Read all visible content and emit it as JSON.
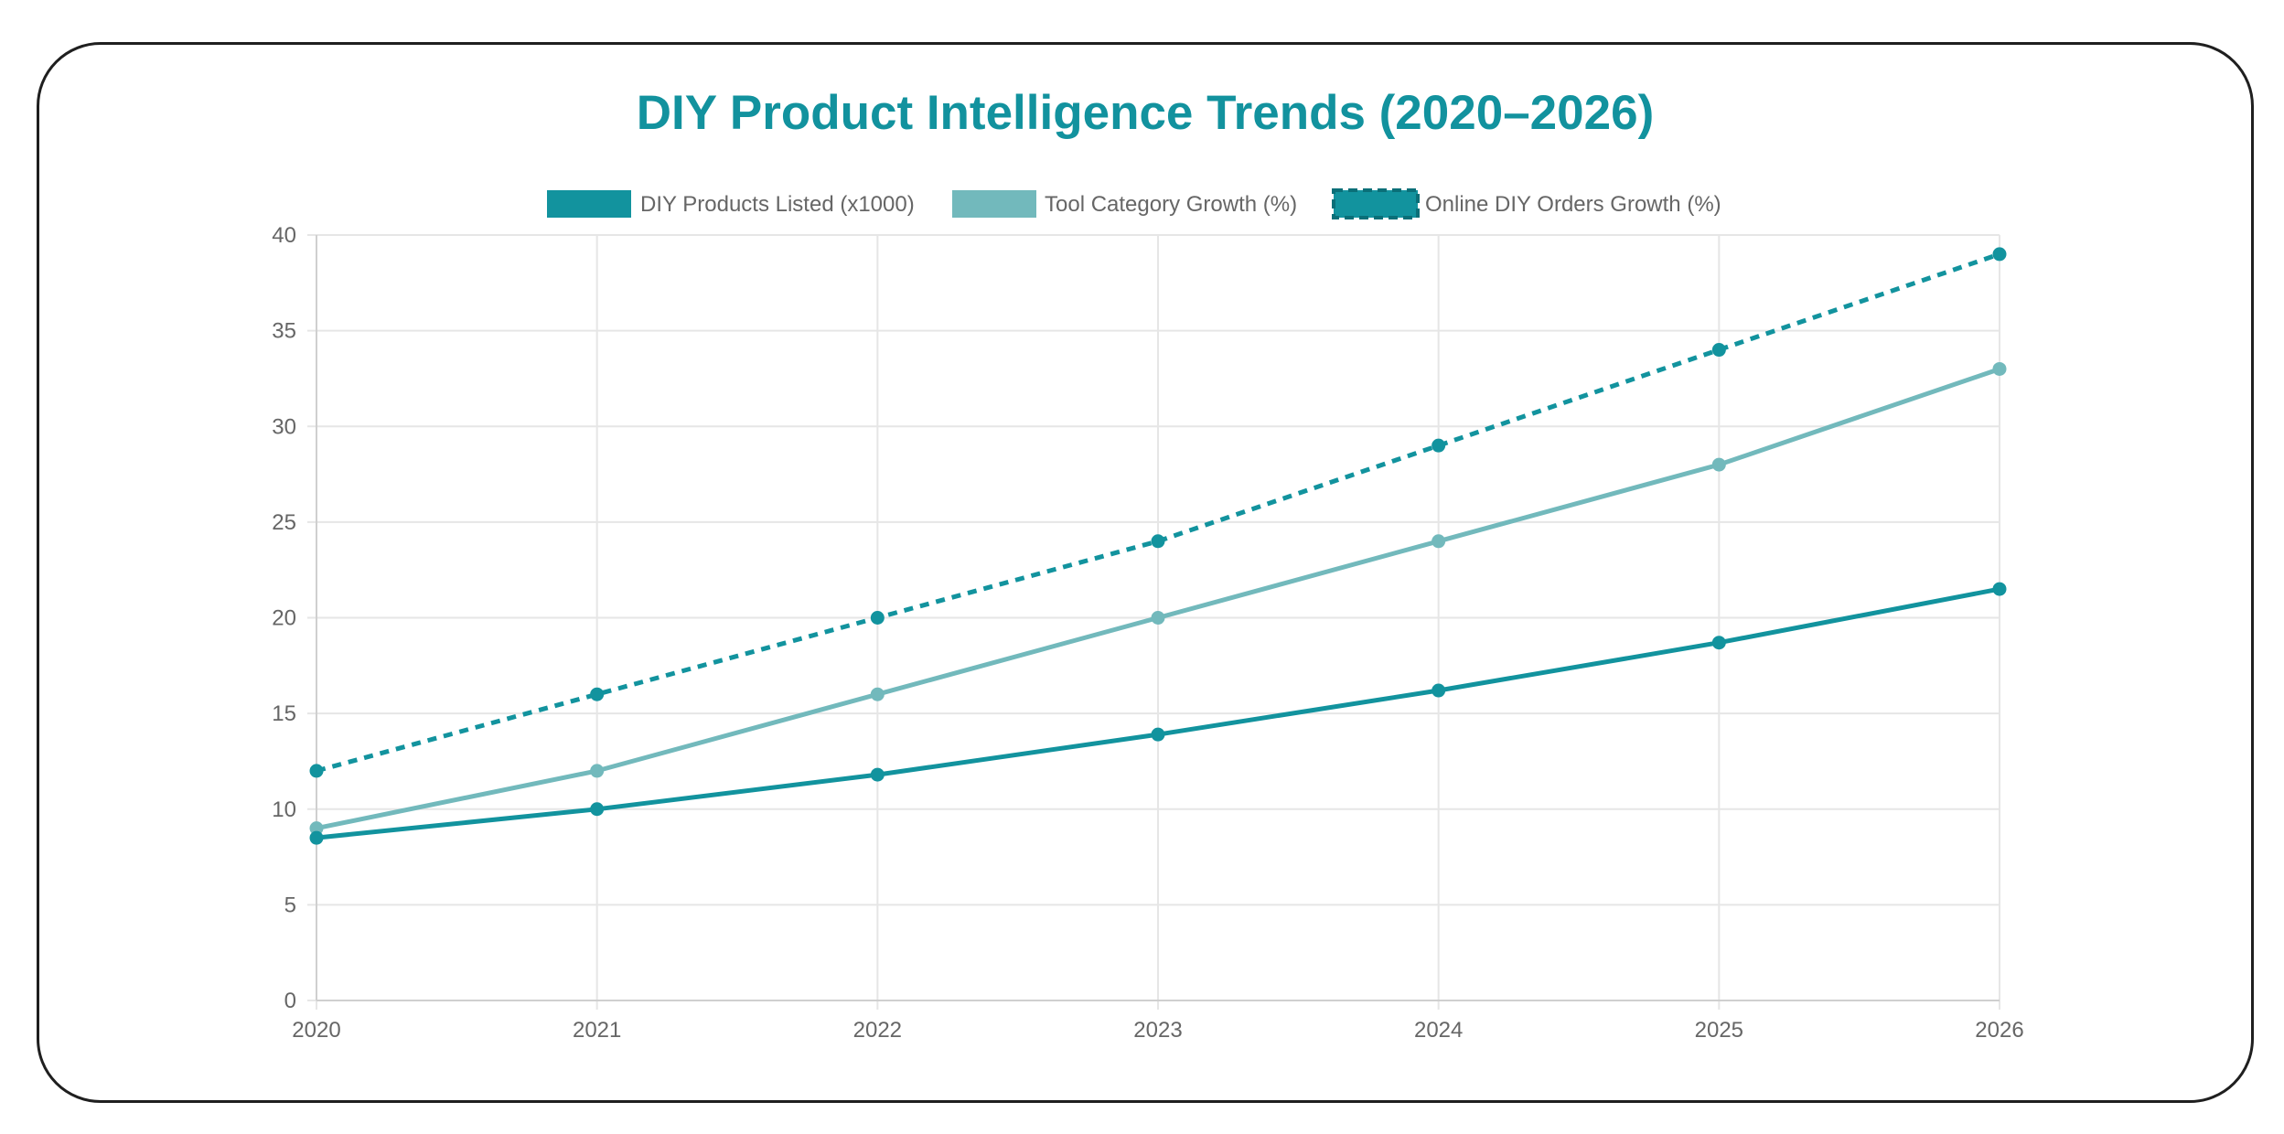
{
  "chart_data": {
    "type": "line",
    "title": "DIY Product Intelligence Trends (2020–2026)",
    "xlabel": "",
    "ylabel": "",
    "categories": [
      "2020",
      "2021",
      "2022",
      "2023",
      "2024",
      "2025",
      "2026"
    ],
    "ylim": [
      0,
      40
    ],
    "yticks": [
      "0",
      "5",
      "10",
      "15",
      "20",
      "25",
      "30",
      "35",
      "40"
    ],
    "grid": true,
    "legend": "top-center",
    "series": [
      {
        "name": "DIY Products Listed (x1000)",
        "values": [
          8.5,
          10,
          11.8,
          13.9,
          16.2,
          18.7,
          21.5
        ],
        "color": "#12939e",
        "style": "solid"
      },
      {
        "name": "Tool Category Growth (%)",
        "values": [
          9,
          12,
          16,
          20,
          24,
          28,
          33
        ],
        "color": "#72b9bc",
        "style": "solid"
      },
      {
        "name": "Online DIY Orders Growth (%)",
        "values": [
          12,
          16,
          20,
          24,
          29,
          34,
          39
        ],
        "color": "#12939e",
        "style": "dashed"
      }
    ]
  }
}
